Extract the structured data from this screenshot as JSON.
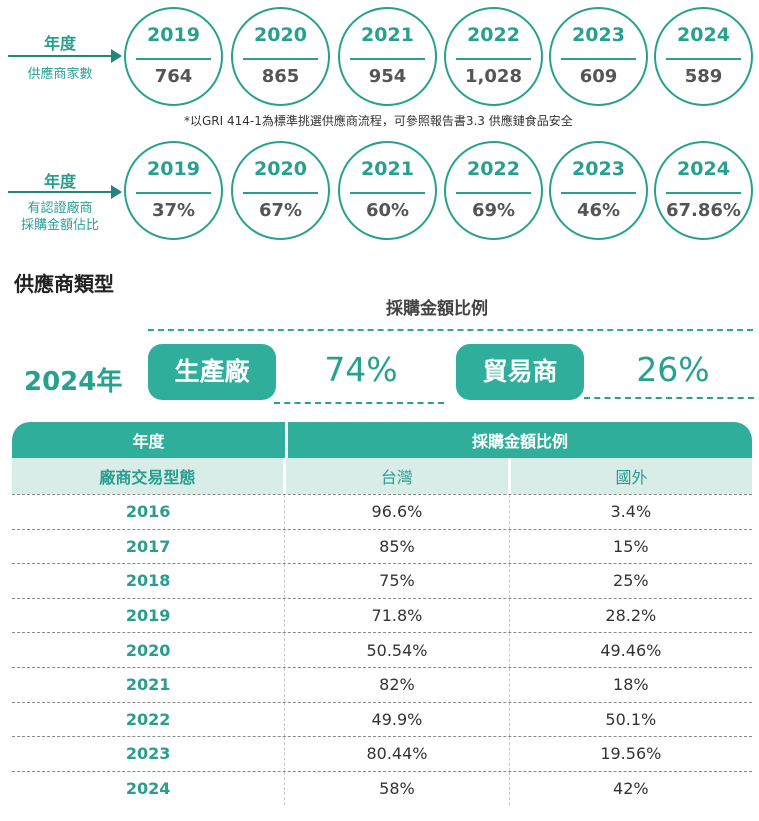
{
  "supplier_count": {
    "label_year": "年度",
    "label_sub": "供應商家數",
    "items": [
      {
        "year": "2019",
        "value": "764"
      },
      {
        "year": "2020",
        "value": "865"
      },
      {
        "year": "2021",
        "value": "954"
      },
      {
        "year": "2022",
        "value": "1,028"
      },
      {
        "year": "2023",
        "value": "609"
      },
      {
        "year": "2024",
        "value": "589"
      }
    ],
    "note": "*以GRI 414-1為標準挑選供應商流程，可參照報告書3.3 供應鏈食品安全"
  },
  "certified_ratio": {
    "label_year": "年度",
    "label_sub_line1": "有認證廠商",
    "label_sub_line2": "採購金額佔比",
    "items": [
      {
        "year": "2019",
        "value": "37%"
      },
      {
        "year": "2020",
        "value": "67%"
      },
      {
        "year": "2021",
        "value": "60%"
      },
      {
        "year": "2022",
        "value": "69%"
      },
      {
        "year": "2023",
        "value": "46%"
      },
      {
        "year": "2024",
        "value": "67.86%"
      }
    ]
  },
  "supplier_type": {
    "title": "供應商類型",
    "ratio_title": "採購金額比例",
    "year": "2024年",
    "types": [
      {
        "label": "生產廠",
        "percent": "74%"
      },
      {
        "label": "貿易商",
        "percent": "26%"
      }
    ]
  },
  "table": {
    "header_year": "年度",
    "header_ratio": "採購金額比例",
    "sub_type": "廠商交易型態",
    "sub_taiwan": "台灣",
    "sub_foreign": "國外",
    "rows": [
      {
        "year": "2016",
        "taiwan": "96.6%",
        "foreign": "3.4%"
      },
      {
        "year": "2017",
        "taiwan": "85%",
        "foreign": "15%"
      },
      {
        "year": "2018",
        "taiwan": "75%",
        "foreign": "25%"
      },
      {
        "year": "2019",
        "taiwan": "71.8%",
        "foreign": "28.2%"
      },
      {
        "year": "2020",
        "taiwan": "50.54%",
        "foreign": "49.46%"
      },
      {
        "year": "2021",
        "taiwan": "82%",
        "foreign": "18%"
      },
      {
        "year": "2022",
        "taiwan": "49.9%",
        "foreign": "50.1%"
      },
      {
        "year": "2023",
        "taiwan": "80.44%",
        "foreign": "19.56%"
      },
      {
        "year": "2024",
        "taiwan": "58%",
        "foreign": "42%"
      }
    ]
  },
  "colors": {
    "accent": "#2fae9c",
    "accent_dark": "#27a08f",
    "header_light": "#d9ede8"
  }
}
